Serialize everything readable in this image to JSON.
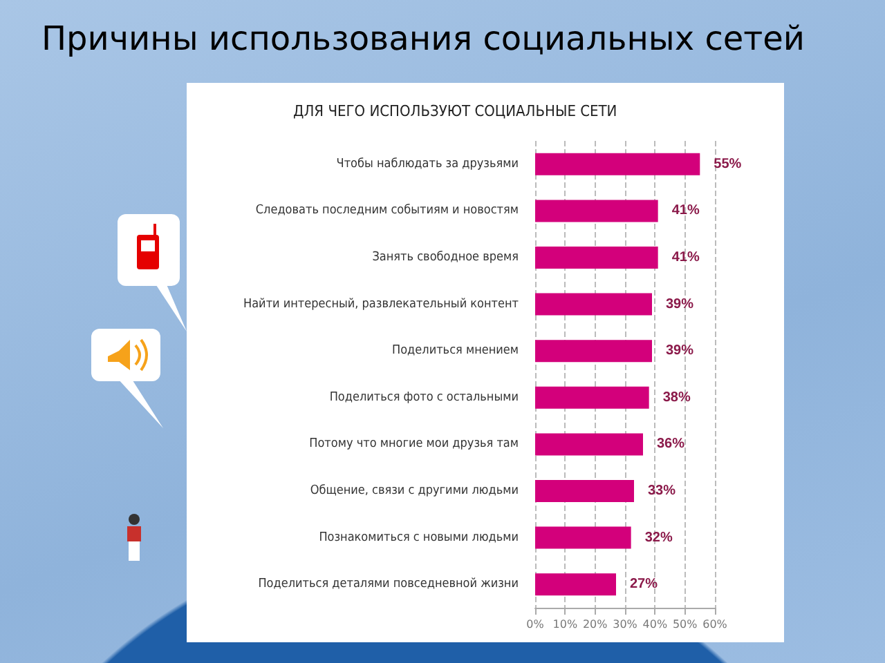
{
  "chart_data": {
    "type": "bar",
    "orientation": "horizontal",
    "title": "Причины использования социальных сетей",
    "subtitle": "ДЛЯ ЧЕГО ИСПОЛЬЗУЮТ СОЦИАЛЬНЫЕ СЕТИ",
    "categories": [
      "Чтобы наблюдать за друзьями",
      "Следовать последним событиям и новостям",
      "Занять свободное время",
      "Найти интересный, развлекательный контент",
      "Поделиться мнением",
      "Поделиться фото с остальными",
      "Потому что многие мои друзья там",
      "Общение, связи с другими людьми",
      "Познакомиться с новыми людьми",
      "Поделиться деталями повседневной жизни"
    ],
    "values": [
      55,
      41,
      41,
      39,
      39,
      38,
      36,
      33,
      32,
      27
    ],
    "value_labels": [
      "55%",
      "41%",
      "41%",
      "39%",
      "39%",
      "38%",
      "36%",
      "33%",
      "32%",
      "27%"
    ],
    "color": "#d3007b",
    "xlim": [
      0,
      60
    ],
    "xticks": [
      {
        "value": 0,
        "label": "0%"
      },
      {
        "value": 10,
        "label": "10%"
      },
      {
        "value": 20,
        "label": "20%"
      },
      {
        "value": 30,
        "label": "30%"
      },
      {
        "value": 40,
        "label": "40%"
      },
      {
        "value": 50,
        "label": "50%"
      },
      {
        "value": 60,
        "label": "60%"
      }
    ],
    "grid": "x"
  }
}
